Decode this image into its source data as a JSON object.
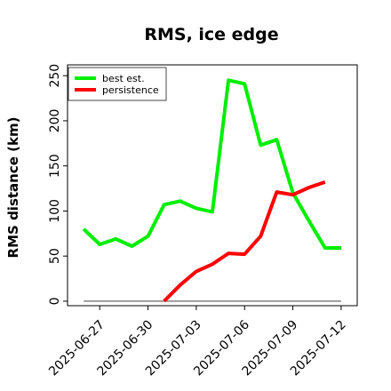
{
  "chart_data": {
    "type": "line",
    "title": "RMS, ice edge",
    "xlabel": "",
    "ylabel": "RMS distance (km)",
    "x": [
      "2025-06-26",
      "2025-06-27",
      "2025-06-28",
      "2025-06-29",
      "2025-06-30",
      "2025-07-01",
      "2025-07-02",
      "2025-07-03",
      "2025-07-04",
      "2025-07-05",
      "2025-07-06",
      "2025-07-07",
      "2025-07-08",
      "2025-07-09",
      "2025-07-10",
      "2025-07-11",
      "2025-07-12"
    ],
    "xtick_labels": [
      "2025-06-27",
      "2025-06-30",
      "2025-07-03",
      "2025-07-06",
      "2025-07-09",
      "2025-07-12"
    ],
    "xlim": [
      "2025-06-25",
      "2025-07-13"
    ],
    "ylim": [
      -5,
      262
    ],
    "yticks": [
      0,
      50,
      100,
      150,
      200,
      250
    ],
    "grid": false,
    "legend_position": "top-left",
    "series": [
      {
        "name": "best est.",
        "color": "#00ee00",
        "values": [
          80,
          63,
          69,
          61,
          72,
          107,
          111,
          103,
          99,
          245,
          241,
          173,
          179,
          120,
          89,
          59,
          59
        ]
      },
      {
        "name": "persistence",
        "color": "#ff0000",
        "values": [
          null,
          null,
          null,
          null,
          null,
          0,
          18,
          33,
          41,
          53,
          52,
          72,
          121,
          118,
          126,
          132,
          null
        ]
      }
    ],
    "baseline": {
      "value": 0,
      "color": "#808080",
      "from": "2025-06-26",
      "to": "2025-07-12"
    }
  }
}
